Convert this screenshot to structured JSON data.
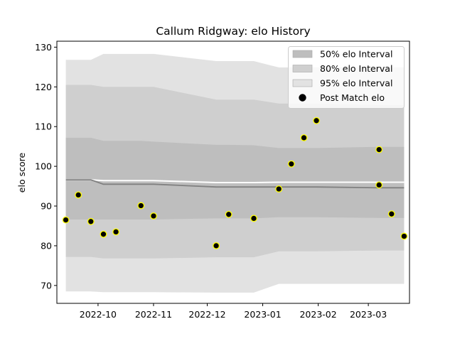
{
  "chart_data": {
    "type": "area",
    "title": "Callum Ridgway: elo History",
    "xlabel": "",
    "ylabel": "elo score",
    "xlim": [
      "2022-09-08",
      "2023-03-24"
    ],
    "ylim": [
      65.5,
      131.5
    ],
    "x_ticks": [
      "2022-10",
      "2022-11",
      "2022-12",
      "2023-01",
      "2023-02",
      "2023-03"
    ],
    "y_ticks": [
      70,
      80,
      90,
      100,
      110,
      120,
      130
    ],
    "grid": false,
    "legend_position": "top-right",
    "legend": [
      "50% elo Interval",
      "80% elo Interval",
      "95% elo Interval",
      "Post Match elo"
    ],
    "colors": {
      "band95": "#e2e2e2",
      "band80": "#cfcfcf",
      "band50": "#bebebe",
      "mean_line": "#808080",
      "white_line": "#ffffff",
      "point_fill": "#000000",
      "point_edge": "#ffff00"
    },
    "dates": [
      "2022-09-13",
      "2022-09-20",
      "2022-09-27",
      "2022-10-04",
      "2022-10-11",
      "2022-10-25",
      "2022-11-01",
      "2022-12-06",
      "2022-12-13",
      "2022-12-27",
      "2023-01-10",
      "2023-01-17",
      "2023-01-24",
      "2023-01-31",
      "2023-03-07",
      "2023-03-14",
      "2023-03-21"
    ],
    "series": [
      {
        "name": "95% elo Interval",
        "lower": [
          68.5,
          68.5,
          68.5,
          68.3,
          68.3,
          68.3,
          68.3,
          68.2,
          68.2,
          68.2,
          70.4,
          70.4,
          70.4,
          70.4,
          70.4,
          70.4,
          70.4
        ],
        "upper": [
          126.8,
          126.8,
          126.8,
          128.3,
          128.3,
          128.3,
          128.3,
          126.5,
          126.5,
          126.5,
          124.9,
          124.9,
          124.9,
          124.9,
          124.9,
          124.9,
          124.9
        ]
      },
      {
        "name": "80% elo Interval",
        "lower": [
          77.2,
          77.2,
          77.2,
          76.8,
          76.8,
          76.8,
          76.8,
          77.1,
          77.1,
          77.1,
          78.6,
          78.6,
          78.6,
          78.6,
          78.8,
          78.8,
          78.8
        ],
        "upper": [
          120.5,
          120.5,
          120.5,
          120.0,
          120.0,
          120.0,
          120.0,
          116.8,
          116.8,
          116.8,
          115.8,
          115.8,
          115.8,
          115.8,
          115.4,
          115.4,
          115.4
        ]
      },
      {
        "name": "50% elo Interval",
        "lower": [
          86.6,
          86.6,
          86.6,
          86.6,
          86.6,
          86.6,
          86.6,
          86.9,
          86.9,
          86.9,
          87.2,
          87.2,
          87.2,
          87.2,
          87.0,
          87.0,
          87.0
        ],
        "upper": [
          107.2,
          107.2,
          107.2,
          106.4,
          106.4,
          106.4,
          106.2,
          105.4,
          105.4,
          105.3,
          104.6,
          104.6,
          104.6,
          104.6,
          104.9,
          104.9,
          104.9
        ]
      },
      {
        "name": "mean",
        "values": [
          96.6,
          96.6,
          96.6,
          95.5,
          95.5,
          95.5,
          95.5,
          94.8,
          94.8,
          94.8,
          94.8,
          94.8,
          94.8,
          94.8,
          94.6,
          94.6,
          94.6
        ]
      },
      {
        "name": "upper_line",
        "values": [
          96.6,
          96.6,
          96.6,
          96.4,
          96.4,
          96.4,
          96.4,
          95.9,
          95.9,
          95.9,
          96.0,
          96.0,
          96.0,
          96.0,
          96.0,
          96.0,
          96.0
        ]
      },
      {
        "name": "Post Match elo",
        "values": [
          86.5,
          92.8,
          86.1,
          82.9,
          83.5,
          90.1,
          87.5,
          80.0,
          87.9,
          86.9,
          94.3,
          100.6,
          107.2,
          111.5,
          104.2,
          88.0,
          82.4
        ],
        "extra_points": [
          {
            "x": "2023-03-07",
            "y": 95.3
          }
        ]
      }
    ]
  }
}
